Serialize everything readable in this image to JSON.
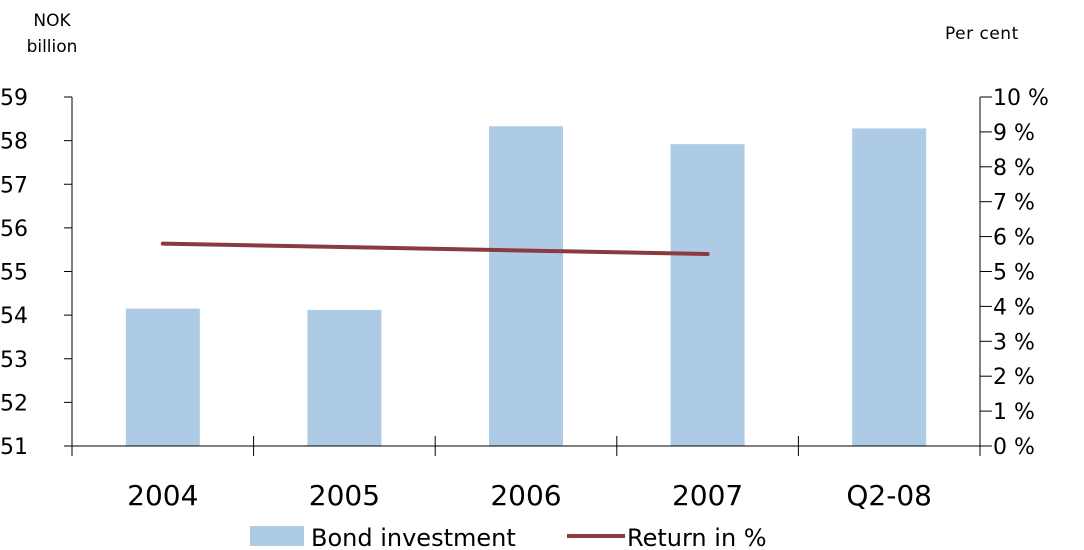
{
  "units": {
    "left": "NOK billion",
    "right": "Per cent"
  },
  "colors": {
    "bar": "#aecbe6",
    "line": "#8b3a3f",
    "axis": "#000000"
  },
  "chart_data": {
    "type": "bar",
    "categories": [
      "2004",
      "2005",
      "2006",
      "2007",
      "Q2-08"
    ],
    "series": [
      {
        "name": "Bond investment",
        "type": "bar",
        "axis": "left",
        "values": [
          54.15,
          54.12,
          58.33,
          57.92,
          58.28
        ]
      },
      {
        "name": "Return in %",
        "type": "line",
        "axis": "right",
        "values": [
          5.8,
          null,
          null,
          5.5,
          null
        ]
      }
    ],
    "ylim_left": [
      51,
      59
    ],
    "yticks_left": [
      "51",
      "52",
      "53",
      "54",
      "55",
      "56",
      "57",
      "58",
      "59"
    ],
    "ylim_right": [
      0,
      10
    ],
    "yticks_right": [
      "0 %",
      "1 %",
      "2 %",
      "3 %",
      "4 %",
      "5 %",
      "6 %",
      "7 %",
      "8 %",
      "9 %",
      "10 %"
    ],
    "legend": [
      "Bond investment",
      "Return in %"
    ],
    "legend_position": "bottom",
    "grid": false
  }
}
